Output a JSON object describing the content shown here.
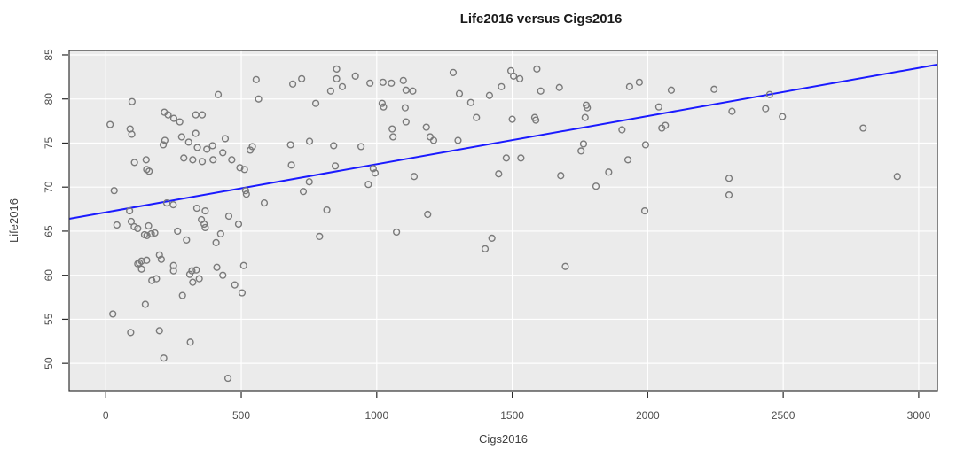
{
  "title": "Life2016 versus Cigs2016",
  "chart_data": {
    "type": "scatter",
    "title": "Life2016 versus Cigs2016",
    "xlabel": "Cigs2016",
    "ylabel": "Life2016",
    "xlim": [
      -135,
      3069
    ],
    "ylim": [
      46.9,
      85.5
    ],
    "x_ticks": [
      0,
      500,
      1000,
      1500,
      2000,
      2500,
      3000
    ],
    "y_ticks": [
      50,
      55,
      60,
      65,
      70,
      75,
      80,
      85
    ],
    "grid": true,
    "legend": "none",
    "colors": {
      "panel_bg": "#EBEBEB",
      "grid": "#FFFFFF",
      "panel_border": "#333333",
      "point_stroke": "#7a7a7a",
      "regression_line": "#1A1AFF",
      "tick": "#2b2b2b"
    },
    "regression_line": {
      "x1": -135,
      "y1": 66.4,
      "x2": 3069,
      "y2": 83.9
    },
    "points": [
      [
        16,
        77.1
      ],
      [
        31,
        69.6
      ],
      [
        26,
        55.6
      ],
      [
        41,
        65.7
      ],
      [
        88,
        67.3
      ],
      [
        90,
        76.6
      ],
      [
        92,
        53.5
      ],
      [
        94,
        66.1
      ],
      [
        96,
        76.0
      ],
      [
        97,
        79.7
      ],
      [
        105,
        65.5
      ],
      [
        106,
        72.8
      ],
      [
        118,
        65.3
      ],
      [
        118,
        61.3
      ],
      [
        124,
        61.4
      ],
      [
        132,
        61.6
      ],
      [
        132,
        60.7
      ],
      [
        143,
        64.6
      ],
      [
        146,
        56.7
      ],
      [
        149,
        73.1
      ],
      [
        151,
        72.0
      ],
      [
        151,
        61.7
      ],
      [
        152,
        64.5
      ],
      [
        158,
        65.6
      ],
      [
        160,
        71.8
      ],
      [
        168,
        64.7
      ],
      [
        170,
        59.4
      ],
      [
        181,
        64.8
      ],
      [
        187,
        59.6
      ],
      [
        198,
        62.3
      ],
      [
        198,
        53.7
      ],
      [
        205,
        61.8
      ],
      [
        212,
        74.8
      ],
      [
        214,
        50.6
      ],
      [
        216,
        78.5
      ],
      [
        218,
        75.3
      ],
      [
        225,
        68.2
      ],
      [
        230,
        78.2
      ],
      [
        249,
        68.0
      ],
      [
        250,
        61.1
      ],
      [
        250,
        60.5
      ],
      [
        251,
        77.8
      ],
      [
        265,
        65.0
      ],
      [
        273,
        77.4
      ],
      [
        280,
        75.7
      ],
      [
        283,
        57.7
      ],
      [
        288,
        73.3
      ],
      [
        298,
        64.0
      ],
      [
        306,
        75.1
      ],
      [
        310,
        60.1
      ],
      [
        312,
        52.4
      ],
      [
        318,
        60.5
      ],
      [
        321,
        73.1
      ],
      [
        321,
        59.2
      ],
      [
        332,
        78.2
      ],
      [
        332,
        76.1
      ],
      [
        334,
        60.6
      ],
      [
        336,
        67.6
      ],
      [
        338,
        74.5
      ],
      [
        345,
        59.6
      ],
      [
        353,
        66.3
      ],
      [
        356,
        78.2
      ],
      [
        356,
        72.9
      ],
      [
        363,
        65.8
      ],
      [
        367,
        67.3
      ],
      [
        367,
        65.4
      ],
      [
        373,
        74.3
      ],
      [
        394,
        74.7
      ],
      [
        396,
        73.1
      ],
      [
        407,
        63.7
      ],
      [
        410,
        60.9
      ],
      [
        415,
        80.5
      ],
      [
        424,
        64.7
      ],
      [
        432,
        73.9
      ],
      [
        432,
        60.0
      ],
      [
        441,
        75.5
      ],
      [
        451,
        48.3
      ],
      [
        454,
        66.7
      ],
      [
        465,
        73.1
      ],
      [
        476,
        58.9
      ],
      [
        490,
        65.8
      ],
      [
        495,
        72.2
      ],
      [
        503,
        58.0
      ],
      [
        509,
        61.1
      ],
      [
        512,
        72.0
      ],
      [
        516,
        69.6
      ],
      [
        519,
        69.2
      ],
      [
        533,
        74.2
      ],
      [
        541,
        74.6
      ],
      [
        555,
        82.2
      ],
      [
        564,
        80.0
      ],
      [
        585,
        68.2
      ],
      [
        682,
        74.8
      ],
      [
        685,
        72.5
      ],
      [
        690,
        81.7
      ],
      [
        723,
        82.3
      ],
      [
        729,
        69.5
      ],
      [
        751,
        70.6
      ],
      [
        752,
        75.2
      ],
      [
        775,
        79.5
      ],
      [
        789,
        64.4
      ],
      [
        816,
        67.4
      ],
      [
        830,
        80.9
      ],
      [
        841,
        74.7
      ],
      [
        847,
        72.4
      ],
      [
        852,
        83.4
      ],
      [
        852,
        82.3
      ],
      [
        873,
        81.4
      ],
      [
        921,
        82.6
      ],
      [
        942,
        74.6
      ],
      [
        969,
        70.3
      ],
      [
        975,
        81.8
      ],
      [
        987,
        72.1
      ],
      [
        994,
        71.6
      ],
      [
        1020,
        79.5
      ],
      [
        1023,
        81.9
      ],
      [
        1025,
        79.1
      ],
      [
        1054,
        81.8
      ],
      [
        1057,
        76.6
      ],
      [
        1060,
        75.7
      ],
      [
        1073,
        64.9
      ],
      [
        1098,
        82.1
      ],
      [
        1105,
        79.0
      ],
      [
        1108,
        81.0
      ],
      [
        1108,
        77.4
      ],
      [
        1133,
        80.9
      ],
      [
        1138,
        71.2
      ],
      [
        1183,
        76.8
      ],
      [
        1188,
        66.9
      ],
      [
        1197,
        75.7
      ],
      [
        1210,
        75.3
      ],
      [
        1282,
        83.0
      ],
      [
        1300,
        75.3
      ],
      [
        1305,
        80.6
      ],
      [
        1347,
        79.6
      ],
      [
        1368,
        77.9
      ],
      [
        1400,
        63.0
      ],
      [
        1416,
        80.4
      ],
      [
        1425,
        64.2
      ],
      [
        1450,
        71.5
      ],
      [
        1460,
        81.4
      ],
      [
        1478,
        73.3
      ],
      [
        1495,
        83.2
      ],
      [
        1500,
        77.7
      ],
      [
        1505,
        82.6
      ],
      [
        1528,
        82.3
      ],
      [
        1532,
        73.3
      ],
      [
        1583,
        77.9
      ],
      [
        1587,
        77.6
      ],
      [
        1591,
        83.4
      ],
      [
        1605,
        80.9
      ],
      [
        1674,
        81.3
      ],
      [
        1679,
        71.3
      ],
      [
        1696,
        61.0
      ],
      [
        1754,
        74.1
      ],
      [
        1763,
        74.9
      ],
      [
        1769,
        77.9
      ],
      [
        1773,
        79.3
      ],
      [
        1777,
        79.0
      ],
      [
        1809,
        70.1
      ],
      [
        1856,
        71.7
      ],
      [
        1905,
        76.5
      ],
      [
        1927,
        73.1
      ],
      [
        1933,
        81.4
      ],
      [
        1969,
        81.9
      ],
      [
        1989,
        67.3
      ],
      [
        1992,
        74.8
      ],
      [
        2041,
        79.1
      ],
      [
        2052,
        76.7
      ],
      [
        2065,
        77.0
      ],
      [
        2087,
        81.0
      ],
      [
        2245,
        81.1
      ],
      [
        2300,
        71.0
      ],
      [
        2300,
        69.1
      ],
      [
        2311,
        78.6
      ],
      [
        2435,
        78.9
      ],
      [
        2450,
        80.5
      ],
      [
        2497,
        78.0
      ],
      [
        2795,
        76.7
      ],
      [
        2921,
        71.2
      ]
    ]
  }
}
